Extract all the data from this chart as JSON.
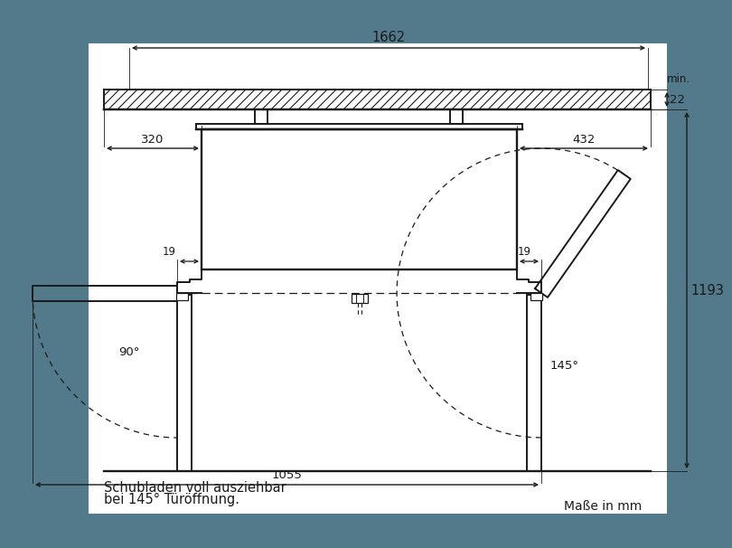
{
  "bg_color": "#527a8a",
  "line_color": "#1a1a1a",
  "lw": 1.4,
  "lw_thin": 0.9,
  "footer_line1": "Schubladen voll ausziehbar",
  "footer_line2": "bei 145° Türöffnung.",
  "footer_line3": "Maße in mm",
  "label_1662": "1662",
  "label_22": "22",
  "label_min": "min.",
  "label_320": "320",
  "label_432": "432",
  "label_19l": "19",
  "label_19r": "19",
  "label_1193": "1193",
  "label_90": "90°",
  "label_145": "145°",
  "label_1055": "1055"
}
